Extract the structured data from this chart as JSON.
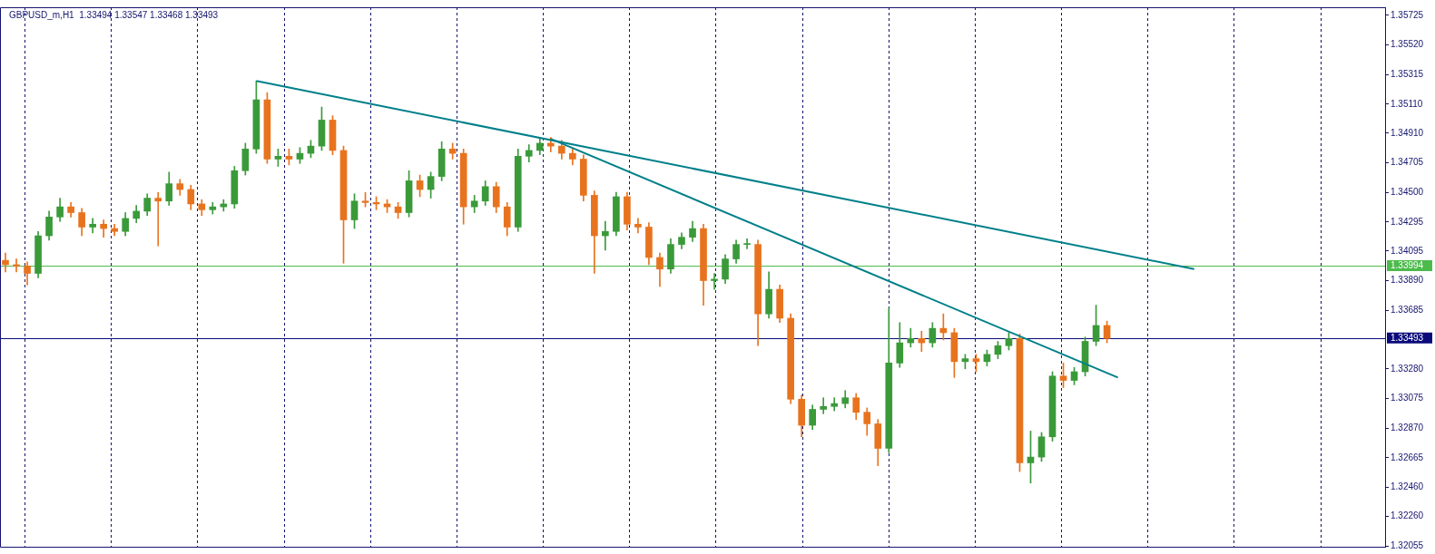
{
  "chart_data": {
    "type": "candlestick",
    "title": "GBPUSD_m,H1  1.33494 1.33547 1.33468 1.33493",
    "categories": [
      null,
      null,
      null,
      null,
      null,
      null,
      null,
      null,
      null,
      null,
      null,
      null,
      null,
      null,
      null,
      null,
      null,
      null,
      null,
      null,
      null,
      null,
      null,
      null,
      null,
      null,
      null,
      null,
      null,
      null,
      null,
      null,
      null,
      null,
      null,
      null,
      null,
      null,
      null,
      null,
      null,
      null,
      null,
      null,
      null,
      null,
      null,
      null,
      null,
      null,
      null,
      null,
      null,
      null,
      null,
      null,
      null,
      null,
      null,
      null,
      null,
      null,
      null,
      null,
      null,
      null,
      null,
      null,
      null,
      null,
      null,
      null,
      null,
      null,
      null,
      null,
      null,
      null,
      null,
      null,
      null,
      null,
      null,
      null,
      null,
      null,
      null,
      null,
      null,
      null,
      null,
      null,
      null,
      null,
      null,
      null,
      null,
      null,
      null,
      null,
      null,
      null,
      null,
      null,
      null,
      null,
      null,
      null,
      null,
      null,
      null,
      null,
      null,
      null,
      null,
      null,
      null,
      null,
      null,
      null,
      null,
      null,
      null,
      null,
      null,
      null,
      null
    ],
    "ohlc": [
      [
        1.3403,
        1.3408,
        1.3395,
        1.34
      ],
      [
        1.34,
        1.3404,
        1.3395,
        1.3399
      ],
      [
        1.3399,
        1.3402,
        1.3386,
        1.3394
      ],
      [
        1.3394,
        1.3423,
        1.3391,
        1.342
      ],
      [
        1.342,
        1.3437,
        1.3417,
        1.3433
      ],
      [
        1.3433,
        1.3446,
        1.343,
        1.344
      ],
      [
        1.344,
        1.3443,
        1.3433,
        1.3436
      ],
      [
        1.3436,
        1.3439,
        1.342,
        1.3426
      ],
      [
        1.3426,
        1.3432,
        1.3422,
        1.3428
      ],
      [
        1.3428,
        1.3431,
        1.3419,
        1.3425
      ],
      [
        1.3425,
        1.3428,
        1.342,
        1.3423
      ],
      [
        1.3423,
        1.3436,
        1.342,
        1.3432
      ],
      [
        1.3432,
        1.3441,
        1.3429,
        1.3437
      ],
      [
        1.3437,
        1.3449,
        1.3434,
        1.3446
      ],
      [
        1.3446,
        1.345,
        1.3413,
        1.3444
      ],
      [
        1.3444,
        1.3464,
        1.3441,
        1.3456
      ],
      [
        1.3456,
        1.3459,
        1.3448,
        1.3452
      ],
      [
        1.3452,
        1.3455,
        1.3438,
        1.3442
      ],
      [
        1.3442,
        1.3445,
        1.3434,
        1.3438
      ],
      [
        1.3438,
        1.3443,
        1.3435,
        1.344
      ],
      [
        1.344,
        1.3445,
        1.3437,
        1.3442
      ],
      [
        1.3442,
        1.3468,
        1.3439,
        1.3465
      ],
      [
        1.3465,
        1.3484,
        1.3462,
        1.348
      ],
      [
        1.348,
        1.3527,
        1.3477,
        1.3514
      ],
      [
        1.3514,
        1.3519,
        1.347,
        1.3473
      ],
      [
        1.3473,
        1.348,
        1.3468,
        1.3475
      ],
      [
        1.3475,
        1.348,
        1.3469,
        1.3473
      ],
      [
        1.3473,
        1.3481,
        1.347,
        1.3477
      ],
      [
        1.3477,
        1.3486,
        1.3474,
        1.3482
      ],
      [
        1.3482,
        1.3509,
        1.3479,
        1.35
      ],
      [
        1.35,
        1.3503,
        1.3476,
        1.3479
      ],
      [
        1.3479,
        1.3482,
        1.3401,
        1.3431
      ],
      [
        1.3431,
        1.3449,
        1.3425,
        1.3444
      ],
      [
        1.3444,
        1.345,
        1.344,
        1.3443
      ],
      [
        1.3443,
        1.3447,
        1.3438,
        1.3442
      ],
      [
        1.3442,
        1.3445,
        1.3436,
        1.344
      ],
      [
        1.344,
        1.3443,
        1.3432,
        1.3436
      ],
      [
        1.3436,
        1.3465,
        1.3433,
        1.3458
      ],
      [
        1.3458,
        1.3462,
        1.3447,
        1.3452
      ],
      [
        1.3452,
        1.3464,
        1.3446,
        1.3461
      ],
      [
        1.3461,
        1.3485,
        1.3458,
        1.348
      ],
      [
        1.348,
        1.3484,
        1.3473,
        1.3477
      ],
      [
        1.3477,
        1.348,
        1.3428,
        1.344
      ],
      [
        1.344,
        1.3448,
        1.3436,
        1.3444
      ],
      [
        1.3444,
        1.3458,
        1.3441,
        1.3454
      ],
      [
        1.3454,
        1.3457,
        1.3436,
        1.344
      ],
      [
        1.344,
        1.3443,
        1.342,
        1.3426
      ],
      [
        1.3426,
        1.348,
        1.3423,
        1.3475
      ],
      [
        1.3475,
        1.3483,
        1.3471,
        1.3479
      ],
      [
        1.3479,
        1.3488,
        1.3476,
        1.3484
      ],
      [
        1.3484,
        1.3488,
        1.3478,
        1.3482
      ],
      [
        1.3482,
        1.3486,
        1.3473,
        1.3477
      ],
      [
        1.3477,
        1.348,
        1.3469,
        1.3473
      ],
      [
        1.3473,
        1.3476,
        1.3444,
        1.3448
      ],
      [
        1.3448,
        1.3451,
        1.3394,
        1.342
      ],
      [
        1.342,
        1.343,
        1.341,
        1.3423
      ],
      [
        1.3423,
        1.345,
        1.342,
        1.3447
      ],
      [
        1.3447,
        1.345,
        1.3424,
        1.3428
      ],
      [
        1.3428,
        1.3432,
        1.3422,
        1.3426
      ],
      [
        1.3426,
        1.3429,
        1.34,
        1.3405
      ],
      [
        1.3405,
        1.3408,
        1.3385,
        1.3397
      ],
      [
        1.3397,
        1.3418,
        1.3394,
        1.3414
      ],
      [
        1.3414,
        1.3422,
        1.3411,
        1.3419
      ],
      [
        1.3419,
        1.343,
        1.3416,
        1.3425
      ],
      [
        1.3425,
        1.3428,
        1.3372,
        1.3389
      ],
      [
        1.3389,
        1.3394,
        1.3383,
        1.339
      ],
      [
        1.339,
        1.3407,
        1.3387,
        1.3404
      ],
      [
        1.3404,
        1.3417,
        1.3401,
        1.3414
      ],
      [
        1.3414,
        1.3418,
        1.3411,
        1.3414
      ],
      [
        1.3414,
        1.3417,
        1.3344,
        1.3366
      ],
      [
        1.3366,
        1.3395,
        1.3363,
        1.3383
      ],
      [
        1.3383,
        1.3386,
        1.336,
        1.3363
      ],
      [
        1.3363,
        1.3366,
        1.3304,
        1.3307
      ],
      [
        1.3307,
        1.331,
        1.3281,
        1.3289
      ],
      [
        1.3289,
        1.3303,
        1.3286,
        1.33
      ],
      [
        1.33,
        1.3308,
        1.3297,
        1.3302
      ],
      [
        1.3302,
        1.3308,
        1.3299,
        1.3304
      ],
      [
        1.3304,
        1.3313,
        1.3301,
        1.3308
      ],
      [
        1.3308,
        1.3311,
        1.3293,
        1.3298
      ],
      [
        1.3298,
        1.3301,
        1.3282,
        1.329
      ],
      [
        1.329,
        1.3293,
        1.3261,
        1.3273
      ],
      [
        1.3273,
        1.337,
        1.327,
        1.3332
      ],
      [
        1.3332,
        1.336,
        1.3329,
        1.3346
      ],
      [
        1.3346,
        1.3356,
        1.3343,
        1.3349
      ],
      [
        1.3349,
        1.3354,
        1.334,
        1.3346
      ],
      [
        1.3346,
        1.336,
        1.3343,
        1.3356
      ],
      [
        1.3356,
        1.3366,
        1.3348,
        1.3353
      ],
      [
        1.3353,
        1.3356,
        1.3322,
        1.3333
      ],
      [
        1.3333,
        1.3338,
        1.3328,
        1.3335
      ],
      [
        1.3335,
        1.3338,
        1.3326,
        1.3333
      ],
      [
        1.3333,
        1.3341,
        1.333,
        1.3338
      ],
      [
        1.3338,
        1.3347,
        1.3335,
        1.3344
      ],
      [
        1.3344,
        1.3353,
        1.3341,
        1.3349
      ],
      [
        1.3349,
        1.3352,
        1.3257,
        1.3263
      ],
      [
        1.3263,
        1.3285,
        1.3249,
        1.3267
      ],
      [
        1.3267,
        1.3284,
        1.3264,
        1.3281
      ],
      [
        1.3281,
        1.3326,
        1.3278,
        1.3323
      ],
      [
        1.3323,
        1.3332,
        1.3315,
        1.332
      ],
      [
        1.332,
        1.3329,
        1.3317,
        1.3326
      ],
      [
        1.3326,
        1.335,
        1.3323,
        1.3347
      ],
      [
        1.3347,
        1.3372,
        1.3344,
        1.3358
      ],
      [
        1.3358,
        1.3361,
        1.3346,
        1.3349
      ],
      null,
      null,
      null,
      null,
      null,
      null,
      null,
      null,
      null,
      null,
      null,
      null,
      null,
      null,
      null,
      null,
      null,
      null,
      null,
      null,
      null,
      null,
      null,
      null,
      null
    ],
    "colors": [
      "#e8731e",
      "#e8731e",
      "#e8731e",
      "#3a9a3a",
      "#3a9a3a",
      "#3a9a3a",
      "#e8731e",
      "#e8731e",
      "#3a9a3a",
      "#e8731e",
      "#e8731e",
      "#3a9a3a",
      "#3a9a3a",
      "#3a9a3a",
      "#e8731e",
      "#3a9a3a",
      "#e8731e",
      "#e8731e",
      "#e8731e",
      "#3a9a3a",
      "#3a9a3a",
      "#3a9a3a",
      "#3a9a3a",
      "#3a9a3a",
      "#e8731e",
      "#3a9a3a",
      "#e8731e",
      "#3a9a3a",
      "#3a9a3a",
      "#3a9a3a",
      "#e8731e",
      "#e8731e",
      "#3a9a3a",
      "#e8731e",
      "#e8731e",
      "#e8731e",
      "#e8731e",
      "#3a9a3a",
      "#e8731e",
      "#3a9a3a",
      "#3a9a3a",
      "#e8731e",
      "#e8731e",
      "#3a9a3a",
      "#3a9a3a",
      "#e8731e",
      "#e8731e",
      "#3a9a3a",
      "#3a9a3a",
      "#3a9a3a",
      "#e8731e",
      "#e8731e",
      "#e8731e",
      "#e8731e",
      "#e8731e",
      "#3a9a3a",
      "#3a9a3a",
      "#e8731e",
      "#e8731e",
      "#e8731e",
      "#e8731e",
      "#3a9a3a",
      "#3a9a3a",
      "#3a9a3a",
      "#e8731e",
      "#3a9a3a",
      "#3a9a3a",
      "#3a9a3a",
      "#3a9a3a",
      "#e8731e",
      "#3a9a3a",
      "#e8731e",
      "#e8731e",
      "#e8731e",
      "#3a9a3a",
      "#3a9a3a",
      "#3a9a3a",
      "#3a9a3a",
      "#e8731e",
      "#e8731e",
      "#e8731e",
      "#3a9a3a",
      "#3a9a3a",
      "#3a9a3a",
      "#e8731e",
      "#3a9a3a",
      "#e8731e",
      "#e8731e",
      "#3a9a3a",
      "#e8731e",
      "#3a9a3a",
      "#3a9a3a",
      "#3a9a3a",
      "#e8731e",
      "#3a9a3a",
      "#3a9a3a",
      "#3a9a3a",
      "#e8731e",
      "#3a9a3a",
      "#3a9a3a",
      "#3a9a3a",
      "#e8731e",
      null,
      null,
      null,
      null,
      null,
      null,
      null,
      null,
      null,
      null,
      null,
      null,
      null,
      null,
      null,
      null,
      null,
      null,
      null,
      null,
      null,
      null,
      null,
      null,
      null
    ],
    "series": [
      {
        "type": "line",
        "color": "#00808a",
        "values": [
          null,
          null,
          null,
          null,
          null,
          null,
          null,
          null,
          null,
          null,
          null,
          null,
          null,
          null,
          null,
          null,
          null,
          null,
          null,
          null,
          null,
          null,
          null,
          1.3527,
          null,
          null,
          null,
          null,
          null,
          null,
          null,
          null,
          null,
          null,
          null,
          null,
          null,
          null,
          null,
          null,
          null,
          null,
          null,
          null,
          null,
          null,
          null,
          null,
          null,
          null,
          null,
          null,
          null,
          null,
          null,
          null,
          null,
          null,
          null,
          null,
          null,
          null,
          null,
          null,
          null,
          null,
          null,
          null,
          null,
          null,
          null,
          null,
          null,
          null,
          null,
          null,
          null,
          null,
          null,
          null,
          null,
          null,
          null,
          null,
          null,
          null,
          null,
          null,
          null,
          null,
          null,
          null,
          null,
          null,
          null,
          null,
          null,
          null,
          null,
          null,
          null,
          null,
          null,
          null,
          null,
          null,
          null,
          null,
          null,
          1.3397,
          null,
          null,
          null,
          null,
          null,
          null,
          null,
          null,
          null,
          null,
          null,
          null,
          null,
          null,
          null,
          null,
          null
        ]
      },
      {
        "type": "line",
        "color": "#00808a",
        "values": [
          null,
          null,
          null,
          null,
          null,
          null,
          null,
          null,
          null,
          null,
          null,
          null,
          null,
          null,
          null,
          null,
          null,
          null,
          null,
          null,
          null,
          null,
          null,
          null,
          null,
          null,
          null,
          null,
          null,
          null,
          null,
          null,
          null,
          null,
          null,
          null,
          null,
          null,
          null,
          null,
          null,
          null,
          null,
          null,
          null,
          null,
          null,
          null,
          null,
          null,
          1.3487,
          null,
          null,
          null,
          null,
          null,
          null,
          null,
          null,
          null,
          null,
          null,
          null,
          null,
          null,
          null,
          null,
          null,
          null,
          null,
          null,
          null,
          null,
          null,
          null,
          null,
          null,
          null,
          null,
          null,
          null,
          null,
          null,
          null,
          null,
          null,
          null,
          null,
          null,
          null,
          null,
          null,
          null,
          null,
          null,
          null,
          null,
          null,
          null,
          null,
          null,
          null,
          1.3322,
          null,
          null,
          null,
          null,
          null,
          null,
          null,
          null,
          null,
          null,
          null,
          null,
          null,
          null,
          null,
          null,
          null,
          null,
          null,
          null,
          null,
          null,
          null,
          null
        ]
      }
    ],
    "ylim": [
      1.3205,
      1.3578
    ],
    "yticks": [
      {
        "value": 1.35725,
        "label": "1.35725"
      },
      {
        "value": 1.3552,
        "label": "1.35520"
      },
      {
        "value": 1.35315,
        "label": "1.35315"
      },
      {
        "value": 1.3511,
        "label": "1.35110"
      },
      {
        "value": 1.3491,
        "label": "1.34910"
      },
      {
        "value": 1.34705,
        "label": "1.34705"
      },
      {
        "value": 1.345,
        "label": "1.34500"
      },
      {
        "value": 1.34295,
        "label": "1.34295"
      },
      {
        "value": 1.34095,
        "label": "1.34095"
      },
      {
        "value": 1.3389,
        "label": "1.33890"
      },
      {
        "value": 1.33685,
        "label": "1.33685"
      },
      {
        "value": 1.3328,
        "label": "1.33280"
      },
      {
        "value": 1.33075,
        "label": "1.33075"
      },
      {
        "value": 1.3287,
        "label": "1.32870"
      },
      {
        "value": 1.32665,
        "label": "1.32665"
      },
      {
        "value": 1.3246,
        "label": "1.32460"
      },
      {
        "value": 1.3226,
        "label": "1.32260"
      },
      {
        "value": 1.32055,
        "label": "1.32055"
      }
    ],
    "ref_lines": [
      {
        "axis": "y",
        "value": 1.33994,
        "label": "1.33994",
        "color": "#4cbb4c"
      },
      {
        "axis": "y",
        "value": 1.33493,
        "label": "1.33493",
        "color": "#0a0a7a"
      }
    ],
    "legend": false
  }
}
